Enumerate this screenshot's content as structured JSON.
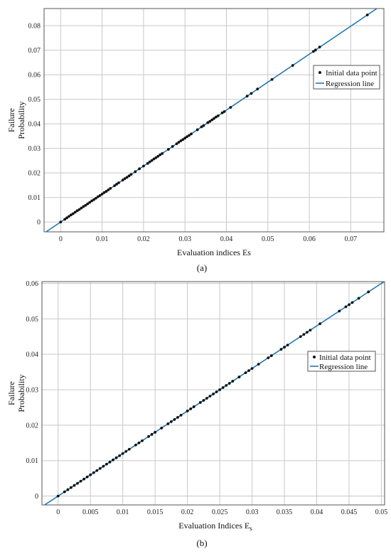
{
  "chart_data": [
    {
      "type": "scatter",
      "caption": "(a)",
      "xlabel": "Evaluation indices Es",
      "ylabel": [
        "Failure",
        "Probability"
      ],
      "xlim": [
        -0.004,
        0.078
      ],
      "ylim": [
        -0.004,
        0.087
      ],
      "xticks": [
        0,
        0.01,
        0.02,
        0.03,
        0.04,
        0.05,
        0.06,
        0.07
      ],
      "yticks": [
        0,
        0.01,
        0.02,
        0.03,
        0.04,
        0.05,
        0.06,
        0.07,
        0.08
      ],
      "grid": true,
      "legend_position": "right",
      "legend": [
        "Initial data point",
        "Regression line"
      ],
      "regression": {
        "slope": 1.14,
        "intercept": 0.0
      },
      "points": [
        [
          0,
          0
        ],
        [
          0.001,
          0.0011
        ],
        [
          0.0015,
          0.0017
        ],
        [
          0.002,
          0.0023
        ],
        [
          0.0025,
          0.0029
        ],
        [
          0.003,
          0.0034
        ],
        [
          0.0035,
          0.004
        ],
        [
          0.004,
          0.0046
        ],
        [
          0.0045,
          0.0051
        ],
        [
          0.005,
          0.0057
        ],
        [
          0.0055,
          0.0063
        ],
        [
          0.006,
          0.0068
        ],
        [
          0.0065,
          0.0074
        ],
        [
          0.007,
          0.008
        ],
        [
          0.0075,
          0.0086
        ],
        [
          0.008,
          0.0091
        ],
        [
          0.0085,
          0.0097
        ],
        [
          0.009,
          0.0103
        ],
        [
          0.0095,
          0.0108
        ],
        [
          0.01,
          0.0114
        ],
        [
          0.0105,
          0.012
        ],
        [
          0.011,
          0.0125
        ],
        [
          0.0115,
          0.0131
        ],
        [
          0.012,
          0.0137
        ],
        [
          0.013,
          0.0148
        ],
        [
          0.0135,
          0.0154
        ],
        [
          0.014,
          0.016
        ],
        [
          0.015,
          0.0171
        ],
        [
          0.0155,
          0.0177
        ],
        [
          0.016,
          0.0182
        ],
        [
          0.0165,
          0.0188
        ],
        [
          0.017,
          0.0194
        ],
        [
          0.018,
          0.0205
        ],
        [
          0.019,
          0.0217
        ],
        [
          0.02,
          0.0228
        ],
        [
          0.021,
          0.0239
        ],
        [
          0.0215,
          0.0245
        ],
        [
          0.022,
          0.0251
        ],
        [
          0.0225,
          0.0257
        ],
        [
          0.023,
          0.0262
        ],
        [
          0.0235,
          0.0268
        ],
        [
          0.024,
          0.0274
        ],
        [
          0.0245,
          0.0279
        ],
        [
          0.026,
          0.0296
        ],
        [
          0.027,
          0.0308
        ],
        [
          0.028,
          0.0319
        ],
        [
          0.0285,
          0.0325
        ],
        [
          0.029,
          0.0331
        ],
        [
          0.0295,
          0.0336
        ],
        [
          0.03,
          0.0342
        ],
        [
          0.0305,
          0.0348
        ],
        [
          0.031,
          0.0353
        ],
        [
          0.0315,
          0.0359
        ],
        [
          0.033,
          0.0376
        ],
        [
          0.034,
          0.0388
        ],
        [
          0.0345,
          0.0393
        ],
        [
          0.0355,
          0.0405
        ],
        [
          0.036,
          0.041
        ],
        [
          0.0365,
          0.0416
        ],
        [
          0.037,
          0.0422
        ],
        [
          0.0375,
          0.0428
        ],
        [
          0.038,
          0.0433
        ],
        [
          0.039,
          0.0445
        ],
        [
          0.0395,
          0.045
        ],
        [
          0.041,
          0.0467
        ],
        [
          0.045,
          0.0513
        ],
        [
          0.046,
          0.0524
        ],
        [
          0.0475,
          0.0542
        ],
        [
          0.051,
          0.0581
        ],
        [
          0.056,
          0.0638
        ],
        [
          0.061,
          0.0695
        ],
        [
          0.0615,
          0.0701
        ],
        [
          0.0625,
          0.0713
        ],
        [
          0.074,
          0.0844
        ]
      ]
    },
    {
      "type": "scatter",
      "caption": "(b)",
      "xlabel": "Evaluation Indices Es",
      "ylabel": [
        "Failure",
        "Probability"
      ],
      "xlim": [
        -0.0025,
        0.0505
      ],
      "ylim": [
        -0.0025,
        0.0605
      ],
      "xticks": [
        0,
        0.005,
        0.01,
        0.015,
        0.02,
        0.025,
        0.03,
        0.035,
        0.04,
        0.045,
        0.05
      ],
      "yticks": [
        0,
        0.01,
        0.02,
        0.03,
        0.04,
        0.05,
        0.06
      ],
      "grid": true,
      "legend_position": "right",
      "legend": [
        "Initial data point",
        "Regression line"
      ],
      "regression": {
        "slope": 1.2,
        "intercept": 0.0
      },
      "points": [
        [
          0,
          0
        ],
        [
          0.001,
          0.0012
        ],
        [
          0.0015,
          0.0018
        ],
        [
          0.002,
          0.0024
        ],
        [
          0.0025,
          0.003
        ],
        [
          0.003,
          0.0036
        ],
        [
          0.0035,
          0.0042
        ],
        [
          0.004,
          0.0048
        ],
        [
          0.0045,
          0.0054
        ],
        [
          0.005,
          0.006
        ],
        [
          0.0055,
          0.0066
        ],
        [
          0.006,
          0.0072
        ],
        [
          0.0065,
          0.0078
        ],
        [
          0.007,
          0.0084
        ],
        [
          0.0075,
          0.009
        ],
        [
          0.008,
          0.0096
        ],
        [
          0.0085,
          0.0102
        ],
        [
          0.009,
          0.0108
        ],
        [
          0.0095,
          0.0114
        ],
        [
          0.01,
          0.012
        ],
        [
          0.0105,
          0.0126
        ],
        [
          0.011,
          0.0132
        ],
        [
          0.012,
          0.0144
        ],
        [
          0.0125,
          0.015
        ],
        [
          0.013,
          0.0156
        ],
        [
          0.014,
          0.0168
        ],
        [
          0.0145,
          0.0174
        ],
        [
          0.015,
          0.018
        ],
        [
          0.016,
          0.0192
        ],
        [
          0.017,
          0.0204
        ],
        [
          0.0175,
          0.021
        ],
        [
          0.018,
          0.0216
        ],
        [
          0.0185,
          0.0222
        ],
        [
          0.019,
          0.0228
        ],
        [
          0.02,
          0.024
        ],
        [
          0.0205,
          0.0246
        ],
        [
          0.021,
          0.0252
        ],
        [
          0.022,
          0.0264
        ],
        [
          0.0225,
          0.027
        ],
        [
          0.023,
          0.0276
        ],
        [
          0.0235,
          0.0282
        ],
        [
          0.024,
          0.0288
        ],
        [
          0.0245,
          0.0294
        ],
        [
          0.025,
          0.03
        ],
        [
          0.0255,
          0.0306
        ],
        [
          0.026,
          0.0312
        ],
        [
          0.0265,
          0.0318
        ],
        [
          0.027,
          0.0324
        ],
        [
          0.028,
          0.0336
        ],
        [
          0.029,
          0.0348
        ],
        [
          0.0295,
          0.0354
        ],
        [
          0.03,
          0.036
        ],
        [
          0.031,
          0.0372
        ],
        [
          0.0325,
          0.039
        ],
        [
          0.033,
          0.0396
        ],
        [
          0.0345,
          0.0414
        ],
        [
          0.035,
          0.042
        ],
        [
          0.0355,
          0.0426
        ],
        [
          0.0375,
          0.045
        ],
        [
          0.038,
          0.0456
        ],
        [
          0.0385,
          0.0462
        ],
        [
          0.039,
          0.0468
        ],
        [
          0.0405,
          0.0486
        ],
        [
          0.0435,
          0.0522
        ],
        [
          0.0445,
          0.0534
        ],
        [
          0.045,
          0.054
        ],
        [
          0.0455,
          0.0546
        ],
        [
          0.0465,
          0.0558
        ],
        [
          0.048,
          0.0576
        ]
      ]
    }
  ]
}
